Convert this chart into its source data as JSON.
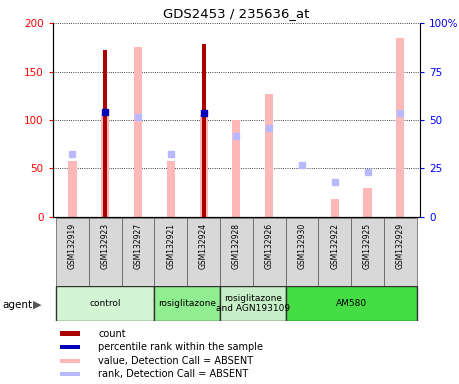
{
  "title": "GDS2453 / 235636_at",
  "samples": [
    "GSM132919",
    "GSM132923",
    "GSM132927",
    "GSM132921",
    "GSM132924",
    "GSM132928",
    "GSM132926",
    "GSM132930",
    "GSM132922",
    "GSM132925",
    "GSM132929"
  ],
  "count_values": [
    0,
    172,
    0,
    0,
    178,
    0,
    0,
    0,
    0,
    0,
    0
  ],
  "percentile_rank_vals": [
    0,
    108,
    0,
    0,
    107,
    0,
    0,
    0,
    0,
    0,
    0
  ],
  "value_absent": [
    58,
    105,
    175,
    58,
    105,
    100,
    127,
    0,
    19,
    30,
    185
  ],
  "rank_absent_vals": [
    65,
    0,
    103,
    65,
    0,
    83,
    92,
    54,
    36,
    46,
    107
  ],
  "ylim_left": [
    0,
    200
  ],
  "ylim_right": [
    0,
    100
  ],
  "left_ticks": [
    0,
    50,
    100,
    150,
    200
  ],
  "right_ticks": [
    0,
    25,
    50,
    75,
    100
  ],
  "right_tick_labels": [
    "0",
    "25",
    "50",
    "75",
    "100%"
  ],
  "agent_groups": [
    {
      "label": "control",
      "start": 0,
      "end": 3,
      "color": "#d4f5d4"
    },
    {
      "label": "rosiglitazone",
      "start": 3,
      "end": 5,
      "color": "#90ee90"
    },
    {
      "label": "rosiglitazone\nand AGN193109",
      "start": 5,
      "end": 7,
      "color": "#c8f0c8"
    },
    {
      "label": "AM580",
      "start": 7,
      "end": 11,
      "color": "#44dd44"
    }
  ],
  "count_color": "#aa0000",
  "percentile_color": "#0000bb",
  "value_absent_color": "#ffb8b8",
  "rank_absent_color": "#b8b8ff",
  "bg_color": "#ffffff"
}
